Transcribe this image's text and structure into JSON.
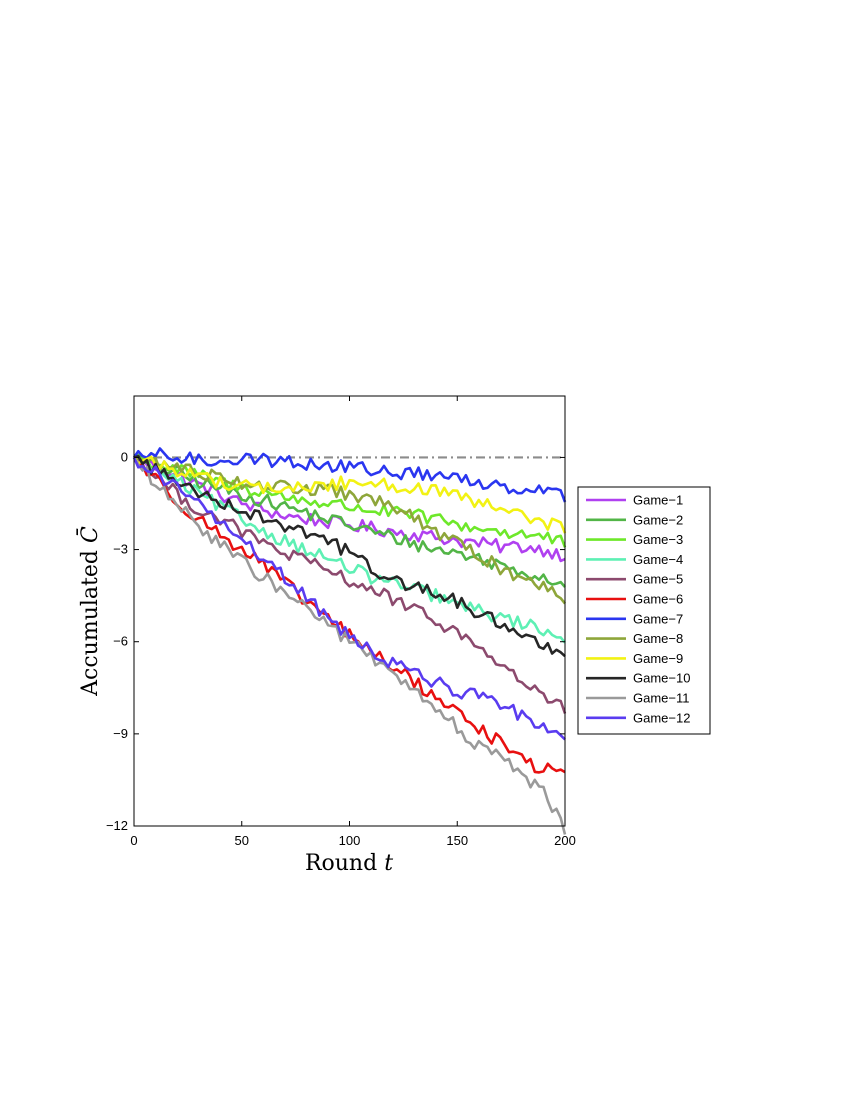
{
  "chart_data": {
    "type": "line",
    "title": "",
    "xlabel": "Round",
    "xlabel_var": "t",
    "ylabel": "Accumulated",
    "ylabel_var": "C̄",
    "xlim": [
      0,
      200
    ],
    "ylim": [
      -12,
      2
    ],
    "x_ticks": [
      0,
      50,
      100,
      150,
      200
    ],
    "y_ticks": [
      0,
      -3,
      -6,
      -9,
      -12
    ],
    "x_tick_labels": [
      "0",
      "50",
      "100",
      "150",
      "200"
    ],
    "y_tick_labels": [
      "0",
      "−3",
      "−6",
      "−9",
      "−12"
    ],
    "grid": false,
    "legend_position": "outside-right",
    "baseline": {
      "y": 0,
      "style": "dash-dot",
      "color": "#8c8c8c"
    },
    "x": [
      0,
      10,
      20,
      30,
      40,
      50,
      60,
      70,
      80,
      90,
      100,
      110,
      120,
      130,
      140,
      150,
      160,
      170,
      180,
      190,
      200
    ],
    "series": [
      {
        "name": "Game−1",
        "color": "#b040f0",
        "values": [
          0,
          -0.3,
          -0.6,
          -0.9,
          -1.2,
          -1.5,
          -1.7,
          -1.9,
          -2.0,
          -2.1,
          -2.2,
          -2.3,
          -2.4,
          -2.5,
          -2.6,
          -2.7,
          -2.8,
          -2.9,
          -2.9,
          -3.0,
          -3.2
        ]
      },
      {
        "name": "Game−2",
        "color": "#52b547",
        "values": [
          0,
          -0.3,
          -0.5,
          -0.8,
          -1.0,
          -1.2,
          -1.4,
          -1.6,
          -1.8,
          -2.0,
          -2.2,
          -2.4,
          -2.6,
          -2.8,
          -3.0,
          -3.1,
          -3.3,
          -3.5,
          -3.7,
          -3.9,
          -4.1
        ]
      },
      {
        "name": "Game−3",
        "color": "#6ee82a",
        "values": [
          0,
          -0.2,
          -0.4,
          -0.6,
          -0.8,
          -1.0,
          -1.1,
          -1.3,
          -1.4,
          -1.5,
          -1.6,
          -1.7,
          -1.8,
          -1.9,
          -2.0,
          -2.2,
          -2.3,
          -2.4,
          -2.5,
          -2.6,
          -2.8
        ]
      },
      {
        "name": "Game−4",
        "color": "#5ef0b4",
        "values": [
          0,
          -0.4,
          -0.8,
          -1.2,
          -1.6,
          -2.0,
          -2.4,
          -2.7,
          -3.0,
          -3.3,
          -3.6,
          -3.9,
          -4.1,
          -4.3,
          -4.5,
          -4.8,
          -5.0,
          -5.2,
          -5.4,
          -5.6,
          -5.9
        ]
      },
      {
        "name": "Game−5",
        "color": "#8c4a6e",
        "values": [
          0,
          -0.6,
          -1.2,
          -1.7,
          -2.0,
          -2.4,
          -2.8,
          -3.1,
          -3.4,
          -3.7,
          -4.0,
          -4.3,
          -4.6,
          -5.0,
          -5.3,
          -5.7,
          -6.2,
          -6.7,
          -7.3,
          -7.8,
          -8.2
        ]
      },
      {
        "name": "Game−6",
        "color": "#e81010",
        "values": [
          0,
          -0.7,
          -1.4,
          -2.0,
          -2.5,
          -3.0,
          -3.5,
          -4.1,
          -4.7,
          -5.2,
          -5.8,
          -6.3,
          -6.8,
          -7.3,
          -7.8,
          -8.3,
          -8.8,
          -9.3,
          -9.8,
          -10.2,
          -10.1
        ]
      },
      {
        "name": "Game−7",
        "color": "#2a36f0",
        "values": [
          0,
          0.1,
          0,
          -0.1,
          -0.1,
          0,
          -0.1,
          -0.1,
          -0.2,
          -0.3,
          -0.3,
          -0.4,
          -0.5,
          -0.5,
          -0.6,
          -0.7,
          -0.8,
          -0.9,
          -1.0,
          -1.0,
          -1.3
        ]
      },
      {
        "name": "Game−8",
        "color": "#8ea63a",
        "values": [
          0,
          -0.2,
          -0.3,
          -0.5,
          -0.6,
          -0.8,
          -0.9,
          -1.0,
          -1.0,
          -1.1,
          -1.2,
          -1.4,
          -1.6,
          -2.0,
          -2.4,
          -2.8,
          -3.2,
          -3.6,
          -3.9,
          -4.2,
          -4.6
        ]
      },
      {
        "name": "Game−9",
        "color": "#f2f214",
        "values": [
          0,
          -0.2,
          -0.4,
          -0.6,
          -0.8,
          -0.9,
          -1.0,
          -1.0,
          -1.0,
          -0.9,
          -0.8,
          -0.8,
          -0.9,
          -1.0,
          -1.1,
          -1.3,
          -1.5,
          -1.7,
          -1.9,
          -2.1,
          -2.3
        ]
      },
      {
        "name": "Game−10",
        "color": "#262626",
        "values": [
          0,
          -0.4,
          -0.8,
          -1.1,
          -1.4,
          -1.7,
          -2.0,
          -2.2,
          -2.4,
          -2.7,
          -3.1,
          -3.6,
          -4.0,
          -4.2,
          -4.4,
          -4.7,
          -5.1,
          -5.4,
          -5.7,
          -6.1,
          -6.3
        ]
      },
      {
        "name": "Game−11",
        "color": "#9a9a9a",
        "values": [
          0,
          -0.9,
          -1.6,
          -2.2,
          -2.8,
          -3.4,
          -3.9,
          -4.4,
          -4.9,
          -5.4,
          -6.0,
          -6.5,
          -7.1,
          -7.6,
          -8.2,
          -8.8,
          -9.4,
          -9.8,
          -10.3,
          -10.9,
          -12.1
        ]
      },
      {
        "name": "Game−12",
        "color": "#5a3cf0",
        "values": [
          0,
          -0.5,
          -1.0,
          -1.5,
          -2.1,
          -2.7,
          -3.3,
          -3.9,
          -4.6,
          -5.2,
          -5.8,
          -6.3,
          -6.7,
          -7.0,
          -7.3,
          -7.6,
          -7.8,
          -8.1,
          -8.4,
          -8.7,
          -9.0
        ]
      }
    ]
  }
}
